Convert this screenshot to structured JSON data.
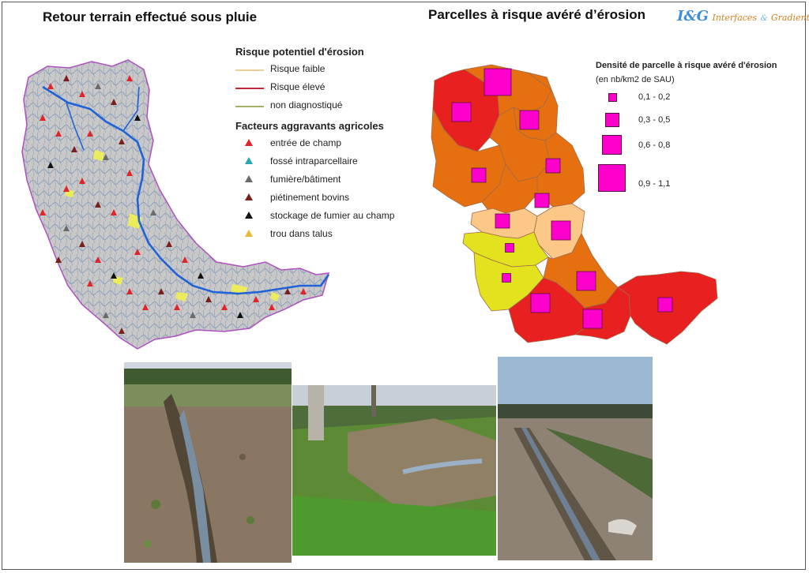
{
  "left_title": "Retour terrain effectué sous pluie",
  "right_title": "Parcelles à risque avéré d’érosion",
  "logo": {
    "mark": "I&G",
    "text1": "Interfaces",
    "amp": "&",
    "text2": "Gradients"
  },
  "legend_left": {
    "risk_title": "Risque potentiel d'érosion",
    "risk_items": [
      {
        "label": "Risque faible",
        "color": "#e8cf9a"
      },
      {
        "label": "Risque élevé",
        "color": "#c0283a"
      },
      {
        "label": "non diagnostiqué",
        "color": "#a7b06a"
      }
    ],
    "factors_title": "Facteurs aggravants agricoles",
    "factors": [
      {
        "label": "entrée de champ",
        "color": "#e0242a"
      },
      {
        "label": "fossé intraparcellaire",
        "color": "#2aa6b0"
      },
      {
        "label": "fumière/bâtiment",
        "color": "#6b6b6b"
      },
      {
        "label": "piétinement bovins",
        "color": "#7a1f1a"
      },
      {
        "label": "stockage de fumier au champ",
        "color": "#111111"
      },
      {
        "label": "trou dans talus",
        "color": "#e8b830"
      }
    ]
  },
  "legend_right": {
    "title": "Densité de parcelle à risque avéré d'érosion",
    "subtitle": "(en nb/km2 de SAU)",
    "classes": [
      "0,1 - 0,2",
      "0,3 - 0,5",
      "0,6 - 0,8",
      "0,9 - 1,1"
    ],
    "symbol_color": "#ff00cc"
  },
  "colors": {
    "frame": "#555555",
    "river": "#1f63d6",
    "basin_fill": "#c9c9c9",
    "basin_outline": "#b04fc0"
  }
}
